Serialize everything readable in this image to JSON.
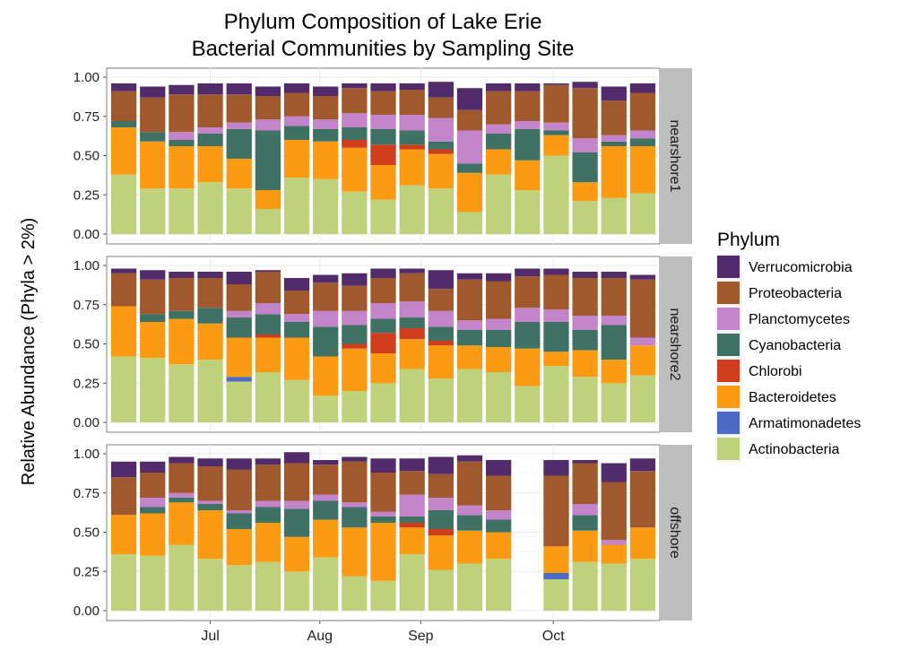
{
  "chart_data": {
    "type": "bar",
    "stacked": true,
    "title": "Phylum Composition of Lake Erie\nBacterial Communities by Sampling Site",
    "xlabel": "",
    "ylabel": "Relative Abundance (Phyla > 2%)",
    "ylim": [
      0,
      1
    ],
    "yticks": [
      "0.00",
      "0.25",
      "0.50",
      "0.75",
      "1.00"
    ],
    "x_axis": {
      "ticks": [
        {
          "label": "Jul",
          "index": 3.5
        },
        {
          "label": "Aug",
          "index": 7.3
        },
        {
          "label": "Sep",
          "index": 10.8
        },
        {
          "label": "Oct",
          "index": 15.4
        }
      ],
      "n_slots": 17
    },
    "grid": true,
    "legend": {
      "title": "Phylum",
      "position": "right",
      "entries": [
        "Verrucomicrobia",
        "Proteobacteria",
        "Planctomycetes",
        "Cyanobacteria",
        "Chlorobi",
        "Bacteroidetes",
        "Armatimonadetes",
        "Actinobacteria"
      ]
    },
    "stack_order": [
      "Actinobacteria",
      "Armatimonadetes",
      "Bacteroidetes",
      "Chlorobi",
      "Cyanobacteria",
      "Planctomycetes",
      "Proteobacteria",
      "Verrucomicrobia"
    ],
    "colors": {
      "Verrucomicrobia": "#522c6a",
      "Proteobacteria": "#a0582d",
      "Planctomycetes": "#c384c9",
      "Cyanobacteria": "#3f7165",
      "Chlorobi": "#cf3d1c",
      "Bacteroidetes": "#fb9b14",
      "Armatimonadetes": "#4d6ac5",
      "Actinobacteria": "#c0d17c"
    },
    "panels": [
      {
        "strip": "nearshore1",
        "bars": [
          {
            "Actinobacteria": 0.38,
            "Armatimonadetes": 0,
            "Bacteroidetes": 0.3,
            "Chlorobi": 0,
            "Cyanobacteria": 0.04,
            "Planctomycetes": 0,
            "Proteobacteria": 0.19,
            "Verrucomicrobia": 0.05
          },
          {
            "Actinobacteria": 0.29,
            "Armatimonadetes": 0,
            "Bacteroidetes": 0.3,
            "Chlorobi": 0,
            "Cyanobacteria": 0.06,
            "Planctomycetes": 0,
            "Proteobacteria": 0.22,
            "Verrucomicrobia": 0.07
          },
          {
            "Actinobacteria": 0.29,
            "Armatimonadetes": 0,
            "Bacteroidetes": 0.27,
            "Chlorobi": 0,
            "Cyanobacteria": 0.04,
            "Planctomycetes": 0.05,
            "Proteobacteria": 0.24,
            "Verrucomicrobia": 0.06
          },
          {
            "Actinobacteria": 0.33,
            "Armatimonadetes": 0,
            "Bacteroidetes": 0.23,
            "Chlorobi": 0,
            "Cyanobacteria": 0.08,
            "Planctomycetes": 0.04,
            "Proteobacteria": 0.21,
            "Verrucomicrobia": 0.07
          },
          {
            "Actinobacteria": 0.29,
            "Armatimonadetes": 0,
            "Bacteroidetes": 0.19,
            "Chlorobi": 0,
            "Cyanobacteria": 0.19,
            "Planctomycetes": 0.04,
            "Proteobacteria": 0.18,
            "Verrucomicrobia": 0.07
          },
          {
            "Actinobacteria": 0.16,
            "Armatimonadetes": 0,
            "Bacteroidetes": 0.12,
            "Chlorobi": 0,
            "Cyanobacteria": 0.38,
            "Planctomycetes": 0.07,
            "Proteobacteria": 0.15,
            "Verrucomicrobia": 0.06
          },
          {
            "Actinobacteria": 0.36,
            "Armatimonadetes": 0,
            "Bacteroidetes": 0.24,
            "Chlorobi": 0,
            "Cyanobacteria": 0.09,
            "Planctomycetes": 0.06,
            "Proteobacteria": 0.15,
            "Verrucomicrobia": 0.06
          },
          {
            "Actinobacteria": 0.35,
            "Armatimonadetes": 0,
            "Bacteroidetes": 0.24,
            "Chlorobi": 0,
            "Cyanobacteria": 0.08,
            "Planctomycetes": 0.06,
            "Proteobacteria": 0.15,
            "Verrucomicrobia": 0.06
          },
          {
            "Actinobacteria": 0.27,
            "Armatimonadetes": 0,
            "Bacteroidetes": 0.28,
            "Chlorobi": 0.05,
            "Cyanobacteria": 0.08,
            "Planctomycetes": 0.09,
            "Proteobacteria": 0.16,
            "Verrucomicrobia": 0.03
          },
          {
            "Actinobacteria": 0.22,
            "Armatimonadetes": 0,
            "Bacteroidetes": 0.22,
            "Chlorobi": 0.13,
            "Cyanobacteria": 0.1,
            "Planctomycetes": 0.09,
            "Proteobacteria": 0.15,
            "Verrucomicrobia": 0.05
          },
          {
            "Actinobacteria": 0.31,
            "Armatimonadetes": 0,
            "Bacteroidetes": 0.23,
            "Chlorobi": 0.03,
            "Cyanobacteria": 0.09,
            "Planctomycetes": 0.1,
            "Proteobacteria": 0.16,
            "Verrucomicrobia": 0.04
          },
          {
            "Actinobacteria": 0.29,
            "Armatimonadetes": 0,
            "Bacteroidetes": 0.22,
            "Chlorobi": 0.03,
            "Cyanobacteria": 0.05,
            "Planctomycetes": 0.15,
            "Proteobacteria": 0.13,
            "Verrucomicrobia": 0.1
          },
          {
            "Actinobacteria": 0.14,
            "Armatimonadetes": 0,
            "Bacteroidetes": 0.25,
            "Chlorobi": 0,
            "Cyanobacteria": 0.06,
            "Planctomycetes": 0.21,
            "Proteobacteria": 0.13,
            "Verrucomicrobia": 0.14
          },
          {
            "Actinobacteria": 0.38,
            "Armatimonadetes": 0,
            "Bacteroidetes": 0.16,
            "Chlorobi": 0,
            "Cyanobacteria": 0.1,
            "Planctomycetes": 0.06,
            "Proteobacteria": 0.21,
            "Verrucomicrobia": 0.05
          },
          {
            "Actinobacteria": 0.28,
            "Armatimonadetes": 0,
            "Bacteroidetes": 0.19,
            "Chlorobi": 0,
            "Cyanobacteria": 0.2,
            "Planctomycetes": 0.05,
            "Proteobacteria": 0.19,
            "Verrucomicrobia": 0.05
          },
          {
            "Actinobacteria": 0.5,
            "Armatimonadetes": 0,
            "Bacteroidetes": 0.13,
            "Chlorobi": 0,
            "Cyanobacteria": 0.03,
            "Planctomycetes": 0.05,
            "Proteobacteria": 0.24,
            "Verrucomicrobia": 0.01
          },
          {
            "Actinobacteria": 0.21,
            "Armatimonadetes": 0,
            "Bacteroidetes": 0.12,
            "Chlorobi": 0,
            "Cyanobacteria": 0.19,
            "Planctomycetes": 0.09,
            "Proteobacteria": 0.32,
            "Verrucomicrobia": 0.04
          },
          {
            "Actinobacteria": 0.23,
            "Armatimonadetes": 0,
            "Bacteroidetes": 0.33,
            "Chlorobi": 0,
            "Cyanobacteria": 0.03,
            "Planctomycetes": 0.04,
            "Proteobacteria": 0.22,
            "Verrucomicrobia": 0.09
          },
          {
            "Actinobacteria": 0.26,
            "Armatimonadetes": 0,
            "Bacteroidetes": 0.3,
            "Chlorobi": 0,
            "Cyanobacteria": 0.05,
            "Planctomycetes": 0.05,
            "Proteobacteria": 0.24,
            "Verrucomicrobia": 0.06
          }
        ]
      },
      {
        "strip": "nearshore2",
        "bars": [
          {
            "Actinobacteria": 0.42,
            "Armatimonadetes": 0,
            "Bacteroidetes": 0.32,
            "Chlorobi": 0,
            "Cyanobacteria": 0,
            "Planctomycetes": 0,
            "Proteobacteria": 0.21,
            "Verrucomicrobia": 0.03
          },
          {
            "Actinobacteria": 0.41,
            "Armatimonadetes": 0,
            "Bacteroidetes": 0.23,
            "Chlorobi": 0,
            "Cyanobacteria": 0.05,
            "Planctomycetes": 0,
            "Proteobacteria": 0.22,
            "Verrucomicrobia": 0.06
          },
          {
            "Actinobacteria": 0.37,
            "Armatimonadetes": 0,
            "Bacteroidetes": 0.29,
            "Chlorobi": 0,
            "Cyanobacteria": 0.05,
            "Planctomycetes": 0,
            "Proteobacteria": 0.21,
            "Verrucomicrobia": 0.04
          },
          {
            "Actinobacteria": 0.4,
            "Armatimonadetes": 0,
            "Bacteroidetes": 0.23,
            "Chlorobi": 0,
            "Cyanobacteria": 0.1,
            "Planctomycetes": 0,
            "Proteobacteria": 0.19,
            "Verrucomicrobia": 0.04
          },
          {
            "Actinobacteria": 0.26,
            "Armatimonadetes": 0.03,
            "Bacteroidetes": 0.25,
            "Chlorobi": 0,
            "Cyanobacteria": 0.13,
            "Planctomycetes": 0.04,
            "Proteobacteria": 0.17,
            "Verrucomicrobia": 0.08
          },
          {
            "Actinobacteria": 0.32,
            "Armatimonadetes": 0,
            "Bacteroidetes": 0.22,
            "Chlorobi": 0.02,
            "Cyanobacteria": 0.13,
            "Planctomycetes": 0.07,
            "Proteobacteria": 0.2,
            "Verrucomicrobia": 0.01
          },
          {
            "Actinobacteria": 0.27,
            "Armatimonadetes": 0,
            "Bacteroidetes": 0.27,
            "Chlorobi": 0,
            "Cyanobacteria": 0.1,
            "Planctomycetes": 0.05,
            "Proteobacteria": 0.15,
            "Verrucomicrobia": 0.08
          },
          {
            "Actinobacteria": 0.17,
            "Armatimonadetes": 0,
            "Bacteroidetes": 0.25,
            "Chlorobi": 0,
            "Cyanobacteria": 0.19,
            "Planctomycetes": 0.1,
            "Proteobacteria": 0.18,
            "Verrucomicrobia": 0.05
          },
          {
            "Actinobacteria": 0.2,
            "Armatimonadetes": 0,
            "Bacteroidetes": 0.27,
            "Chlorobi": 0.03,
            "Cyanobacteria": 0.12,
            "Planctomycetes": 0.09,
            "Proteobacteria": 0.16,
            "Verrucomicrobia": 0.08
          },
          {
            "Actinobacteria": 0.25,
            "Armatimonadetes": 0,
            "Bacteroidetes": 0.19,
            "Chlorobi": 0.13,
            "Cyanobacteria": 0.09,
            "Planctomycetes": 0.1,
            "Proteobacteria": 0.16,
            "Verrucomicrobia": 0.06
          },
          {
            "Actinobacteria": 0.34,
            "Armatimonadetes": 0,
            "Bacteroidetes": 0.19,
            "Chlorobi": 0.07,
            "Cyanobacteria": 0.07,
            "Planctomycetes": 0.1,
            "Proteobacteria": 0.18,
            "Verrucomicrobia": 0.03
          },
          {
            "Actinobacteria": 0.28,
            "Armatimonadetes": 0,
            "Bacteroidetes": 0.21,
            "Chlorobi": 0.03,
            "Cyanobacteria": 0.09,
            "Planctomycetes": 0.1,
            "Proteobacteria": 0.14,
            "Verrucomicrobia": 0.12
          },
          {
            "Actinobacteria": 0.34,
            "Armatimonadetes": 0,
            "Bacteroidetes": 0.15,
            "Chlorobi": 0,
            "Cyanobacteria": 0.1,
            "Planctomycetes": 0.06,
            "Proteobacteria": 0.26,
            "Verrucomicrobia": 0.04
          },
          {
            "Actinobacteria": 0.32,
            "Armatimonadetes": 0,
            "Bacteroidetes": 0.16,
            "Chlorobi": 0,
            "Cyanobacteria": 0.11,
            "Planctomycetes": 0.07,
            "Proteobacteria": 0.24,
            "Verrucomicrobia": 0.05
          },
          {
            "Actinobacteria": 0.23,
            "Armatimonadetes": 0,
            "Bacteroidetes": 0.24,
            "Chlorobi": 0,
            "Cyanobacteria": 0.17,
            "Planctomycetes": 0.09,
            "Proteobacteria": 0.2,
            "Verrucomicrobia": 0.05
          },
          {
            "Actinobacteria": 0.36,
            "Armatimonadetes": 0,
            "Bacteroidetes": 0.09,
            "Chlorobi": 0,
            "Cyanobacteria": 0.19,
            "Planctomycetes": 0.08,
            "Proteobacteria": 0.22,
            "Verrucomicrobia": 0.04
          },
          {
            "Actinobacteria": 0.29,
            "Armatimonadetes": 0,
            "Bacteroidetes": 0.17,
            "Chlorobi": 0,
            "Cyanobacteria": 0.13,
            "Planctomycetes": 0.09,
            "Proteobacteria": 0.24,
            "Verrucomicrobia": 0.04
          },
          {
            "Actinobacteria": 0.25,
            "Armatimonadetes": 0,
            "Bacteroidetes": 0.15,
            "Chlorobi": 0,
            "Cyanobacteria": 0.22,
            "Planctomycetes": 0.06,
            "Proteobacteria": 0.24,
            "Verrucomicrobia": 0.04
          },
          {
            "Actinobacteria": 0.3,
            "Armatimonadetes": 0,
            "Bacteroidetes": 0.19,
            "Chlorobi": 0,
            "Cyanobacteria": 0,
            "Planctomycetes": 0.05,
            "Proteobacteria": 0.37,
            "Verrucomicrobia": 0.03
          }
        ]
      },
      {
        "strip": "offshore",
        "bars": [
          {
            "Actinobacteria": 0.36,
            "Armatimonadetes": 0,
            "Bacteroidetes": 0.25,
            "Chlorobi": 0,
            "Cyanobacteria": 0,
            "Planctomycetes": 0,
            "Proteobacteria": 0.24,
            "Verrucomicrobia": 0.1
          },
          {
            "Actinobacteria": 0.35,
            "Armatimonadetes": 0,
            "Bacteroidetes": 0.27,
            "Chlorobi": 0,
            "Cyanobacteria": 0.04,
            "Planctomycetes": 0.06,
            "Proteobacteria": 0.16,
            "Verrucomicrobia": 0.07
          },
          {
            "Actinobacteria": 0.42,
            "Armatimonadetes": 0,
            "Bacteroidetes": 0.27,
            "Chlorobi": 0,
            "Cyanobacteria": 0.03,
            "Planctomycetes": 0.03,
            "Proteobacteria": 0.19,
            "Verrucomicrobia": 0.04
          },
          {
            "Actinobacteria": 0.33,
            "Armatimonadetes": 0,
            "Bacteroidetes": 0.31,
            "Chlorobi": 0,
            "Cyanobacteria": 0.04,
            "Planctomycetes": 0.02,
            "Proteobacteria": 0.22,
            "Verrucomicrobia": 0.05
          },
          {
            "Actinobacteria": 0.29,
            "Armatimonadetes": 0,
            "Bacteroidetes": 0.23,
            "Chlorobi": 0,
            "Cyanobacteria": 0.1,
            "Planctomycetes": 0.02,
            "Proteobacteria": 0.26,
            "Verrucomicrobia": 0.07
          },
          {
            "Actinobacteria": 0.31,
            "Armatimonadetes": 0,
            "Bacteroidetes": 0.25,
            "Chlorobi": 0,
            "Cyanobacteria": 0.1,
            "Planctomycetes": 0.04,
            "Proteobacteria": 0.23,
            "Verrucomicrobia": 0.04
          },
          {
            "Actinobacteria": 0.25,
            "Armatimonadetes": 0,
            "Bacteroidetes": 0.22,
            "Chlorobi": 0,
            "Cyanobacteria": 0.18,
            "Planctomycetes": 0.05,
            "Proteobacteria": 0.24,
            "Verrucomicrobia": 0.07
          },
          {
            "Actinobacteria": 0.34,
            "Armatimonadetes": 0,
            "Bacteroidetes": 0.24,
            "Chlorobi": 0,
            "Cyanobacteria": 0.12,
            "Planctomycetes": 0.04,
            "Proteobacteria": 0.19,
            "Verrucomicrobia": 0.03
          },
          {
            "Actinobacteria": 0.22,
            "Armatimonadetes": 0,
            "Bacteroidetes": 0.31,
            "Chlorobi": 0,
            "Cyanobacteria": 0.13,
            "Planctomycetes": 0.03,
            "Proteobacteria": 0.26,
            "Verrucomicrobia": 0.03
          },
          {
            "Actinobacteria": 0.19,
            "Armatimonadetes": 0,
            "Bacteroidetes": 0.37,
            "Chlorobi": 0,
            "Cyanobacteria": 0.04,
            "Planctomycetes": 0.03,
            "Proteobacteria": 0.25,
            "Verrucomicrobia": 0.09
          },
          {
            "Actinobacteria": 0.36,
            "Armatimonadetes": 0,
            "Bacteroidetes": 0.17,
            "Chlorobi": 0.03,
            "Cyanobacteria": 0.04,
            "Planctomycetes": 0.14,
            "Proteobacteria": 0.15,
            "Verrucomicrobia": 0.08
          },
          {
            "Actinobacteria": 0.26,
            "Armatimonadetes": 0,
            "Bacteroidetes": 0.22,
            "Chlorobi": 0.04,
            "Cyanobacteria": 0.12,
            "Planctomycetes": 0.08,
            "Proteobacteria": 0.15,
            "Verrucomicrobia": 0.11
          },
          {
            "Actinobacteria": 0.3,
            "Armatimonadetes": 0,
            "Bacteroidetes": 0.21,
            "Chlorobi": 0,
            "Cyanobacteria": 0.1,
            "Planctomycetes": 0.06,
            "Proteobacteria": 0.28,
            "Verrucomicrobia": 0.04
          },
          {
            "Actinobacteria": 0.33,
            "Armatimonadetes": 0,
            "Bacteroidetes": 0.17,
            "Chlorobi": 0,
            "Cyanobacteria": 0.08,
            "Planctomycetes": 0.06,
            "Proteobacteria": 0.22,
            "Verrucomicrobia": 0.1
          },
          null,
          {
            "Actinobacteria": 0.2,
            "Armatimonadetes": 0.04,
            "Bacteroidetes": 0.17,
            "Chlorobi": 0,
            "Cyanobacteria": 0,
            "Planctomycetes": 0,
            "Proteobacteria": 0.45,
            "Verrucomicrobia": 0.1
          },
          {
            "Actinobacteria": 0.31,
            "Armatimonadetes": 0,
            "Bacteroidetes": 0.2,
            "Chlorobi": 0,
            "Cyanobacteria": 0.1,
            "Planctomycetes": 0.07,
            "Proteobacteria": 0.26,
            "Verrucomicrobia": 0.02
          },
          {
            "Actinobacteria": 0.3,
            "Armatimonadetes": 0,
            "Bacteroidetes": 0.12,
            "Chlorobi": 0,
            "Cyanobacteria": 0,
            "Planctomycetes": 0.03,
            "Proteobacteria": 0.37,
            "Verrucomicrobia": 0.12
          },
          {
            "Actinobacteria": 0.33,
            "Armatimonadetes": 0,
            "Bacteroidetes": 0.2,
            "Chlorobi": 0,
            "Cyanobacteria": 0,
            "Planctomycetes": 0,
            "Proteobacteria": 0.36,
            "Verrucomicrobia": 0.08
          }
        ]
      }
    ]
  }
}
